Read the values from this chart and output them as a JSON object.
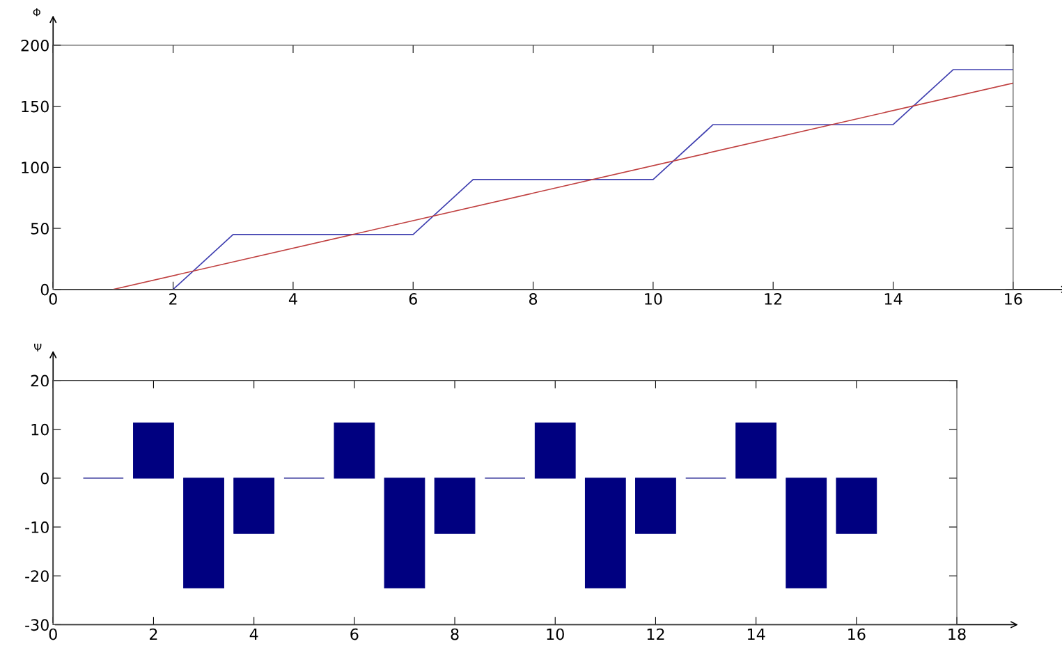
{
  "chart_data": [
    {
      "type": "line",
      "ylabel": "Φ",
      "xlim": [
        0,
        16
      ],
      "ylim": [
        0,
        200
      ],
      "xticks": [
        0,
        2,
        4,
        6,
        8,
        10,
        12,
        14,
        16
      ],
      "yticks": [
        0,
        50,
        100,
        150,
        200
      ],
      "grid": false,
      "legend": false,
      "marker": "none",
      "line_style": "solid",
      "series": [
        {
          "color": "#4040b0",
          "x": [
            2,
            3,
            6,
            7,
            10,
            11,
            14,
            15,
            16
          ],
          "values": [
            0,
            45,
            45,
            90,
            90,
            135,
            135,
            180,
            180
          ]
        },
        {
          "color": "#c04040",
          "x": [
            1,
            16
          ],
          "values": [
            0,
            169
          ]
        }
      ]
    },
    {
      "type": "bar",
      "ylabel": "Ψ",
      "x": [
        1,
        2,
        3,
        4,
        5,
        6,
        7,
        8,
        9,
        10,
        11,
        12,
        13,
        14,
        15,
        16
      ],
      "xlim": [
        0,
        18
      ],
      "ylim": [
        -30,
        20
      ],
      "xticks": [
        0,
        2,
        4,
        6,
        8,
        10,
        12,
        14,
        16,
        18
      ],
      "yticks": [
        -30,
        -20,
        -10,
        0,
        10,
        20
      ],
      "grid": false,
      "legend": false,
      "color": "#000080",
      "values": [
        0,
        11.3,
        -22.5,
        -11.3,
        0,
        11.3,
        -22.5,
        -11.3,
        0,
        11.3,
        -22.5,
        -11.3,
        0,
        11.3,
        -22.5,
        -11.3
      ]
    }
  ]
}
